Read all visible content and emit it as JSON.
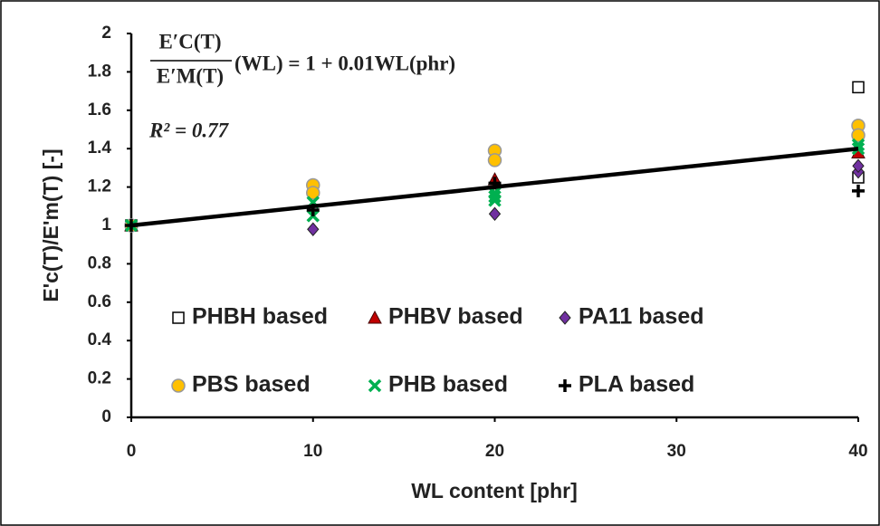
{
  "chart_data": {
    "type": "scatter",
    "xlabel": "WL content [phr]",
    "ylabel": "E'c(T)/E'm(T) [-]",
    "xlim": [
      0,
      40
    ],
    "xticks": [
      0,
      10,
      20,
      30,
      40
    ],
    "ylim": [
      0,
      2
    ],
    "yticks": [
      0,
      0.2,
      0.4,
      0.6,
      0.8,
      1,
      1.2,
      1.4,
      1.6,
      1.8,
      2
    ],
    "equation": {
      "numerator": "E′C(T)",
      "denominator": "E′M(T)",
      "rhs": "(WL) = 1 + 0.01WL(phr)",
      "r2": "R² = 0.77"
    },
    "fit": {
      "x": [
        0,
        40
      ],
      "y": [
        1,
        1.4
      ],
      "color": "#000000"
    },
    "series": [
      {
        "name": "PHBH based",
        "color": "#000000",
        "marker": "square",
        "x": [
          0,
          40,
          40
        ],
        "values": [
          1.0,
          1.72,
          1.25
        ]
      },
      {
        "name": "PHBV based",
        "color": "#c00000",
        "marker": "triangle",
        "x": [
          0,
          20,
          40
        ],
        "values": [
          1.0,
          1.24,
          1.38
        ]
      },
      {
        "name": "PA11 based",
        "color": "#7030a0",
        "marker": "diamond",
        "x": [
          0,
          10,
          20,
          40,
          40
        ],
        "values": [
          1.0,
          0.98,
          1.06,
          1.28,
          1.31
        ]
      },
      {
        "name": "PBS based",
        "color": "#ffc000",
        "marker": "circle",
        "x": [
          0,
          10,
          10,
          20,
          20,
          40,
          40
        ],
        "values": [
          1.0,
          1.21,
          1.17,
          1.39,
          1.34,
          1.52,
          1.47
        ]
      },
      {
        "name": "PHB based",
        "color": "#00b050",
        "marker": "x",
        "x": [
          0,
          10,
          10,
          20,
          20,
          20,
          40,
          40
        ],
        "values": [
          1.0,
          1.12,
          1.05,
          1.17,
          1.13,
          1.15,
          1.42,
          1.4
        ]
      },
      {
        "name": "PLA based",
        "color": "#000000",
        "marker": "plus",
        "x": [
          0,
          10,
          20,
          40
        ],
        "values": [
          1.0,
          1.08,
          1.22,
          1.18
        ]
      }
    ]
  }
}
